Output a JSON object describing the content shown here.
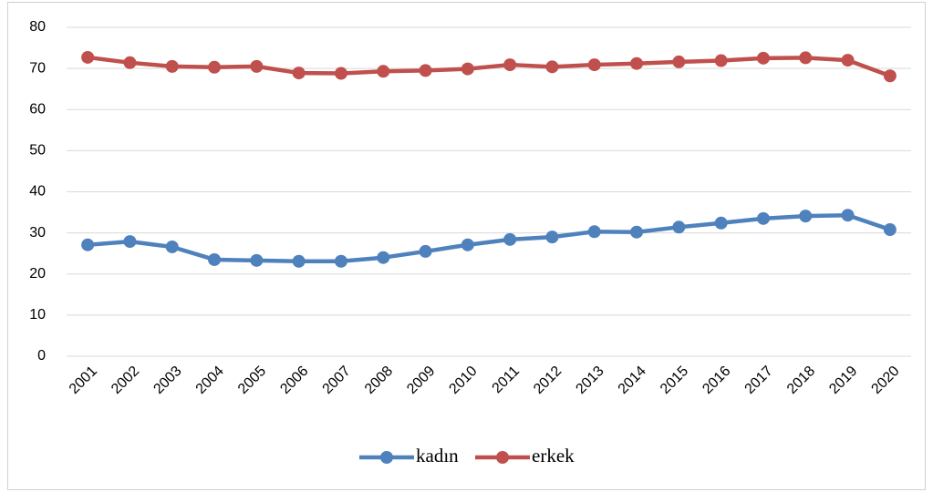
{
  "chart_data": {
    "type": "line",
    "categories": [
      "2001",
      "2002",
      "2003",
      "2004",
      "2005",
      "2006",
      "2007",
      "2008",
      "2009",
      "2010",
      "2011",
      "2012",
      "2013",
      "2014",
      "2015",
      "2016",
      "2017",
      "2018",
      "2019",
      "2020"
    ],
    "series": [
      {
        "name": "kadın",
        "color": "#4f81bd",
        "values": [
          27.1,
          27.9,
          26.6,
          23.5,
          23.3,
          23.1,
          23.1,
          24.0,
          25.5,
          27.1,
          28.4,
          29.0,
          30.3,
          30.2,
          31.4,
          32.4,
          33.5,
          34.1,
          34.3,
          30.8
        ]
      },
      {
        "name": "erkek",
        "color": "#c0504d",
        "values": [
          72.7,
          71.4,
          70.5,
          70.3,
          70.5,
          68.9,
          68.8,
          69.3,
          69.5,
          69.9,
          70.9,
          70.4,
          70.9,
          71.2,
          71.6,
          71.9,
          72.5,
          72.6,
          72.0,
          68.2
        ]
      }
    ],
    "ylim": [
      0,
      80
    ],
    "yticks": [
      0,
      10,
      20,
      30,
      40,
      50,
      60,
      70,
      80
    ],
    "grid": true,
    "legend": "bottom"
  }
}
